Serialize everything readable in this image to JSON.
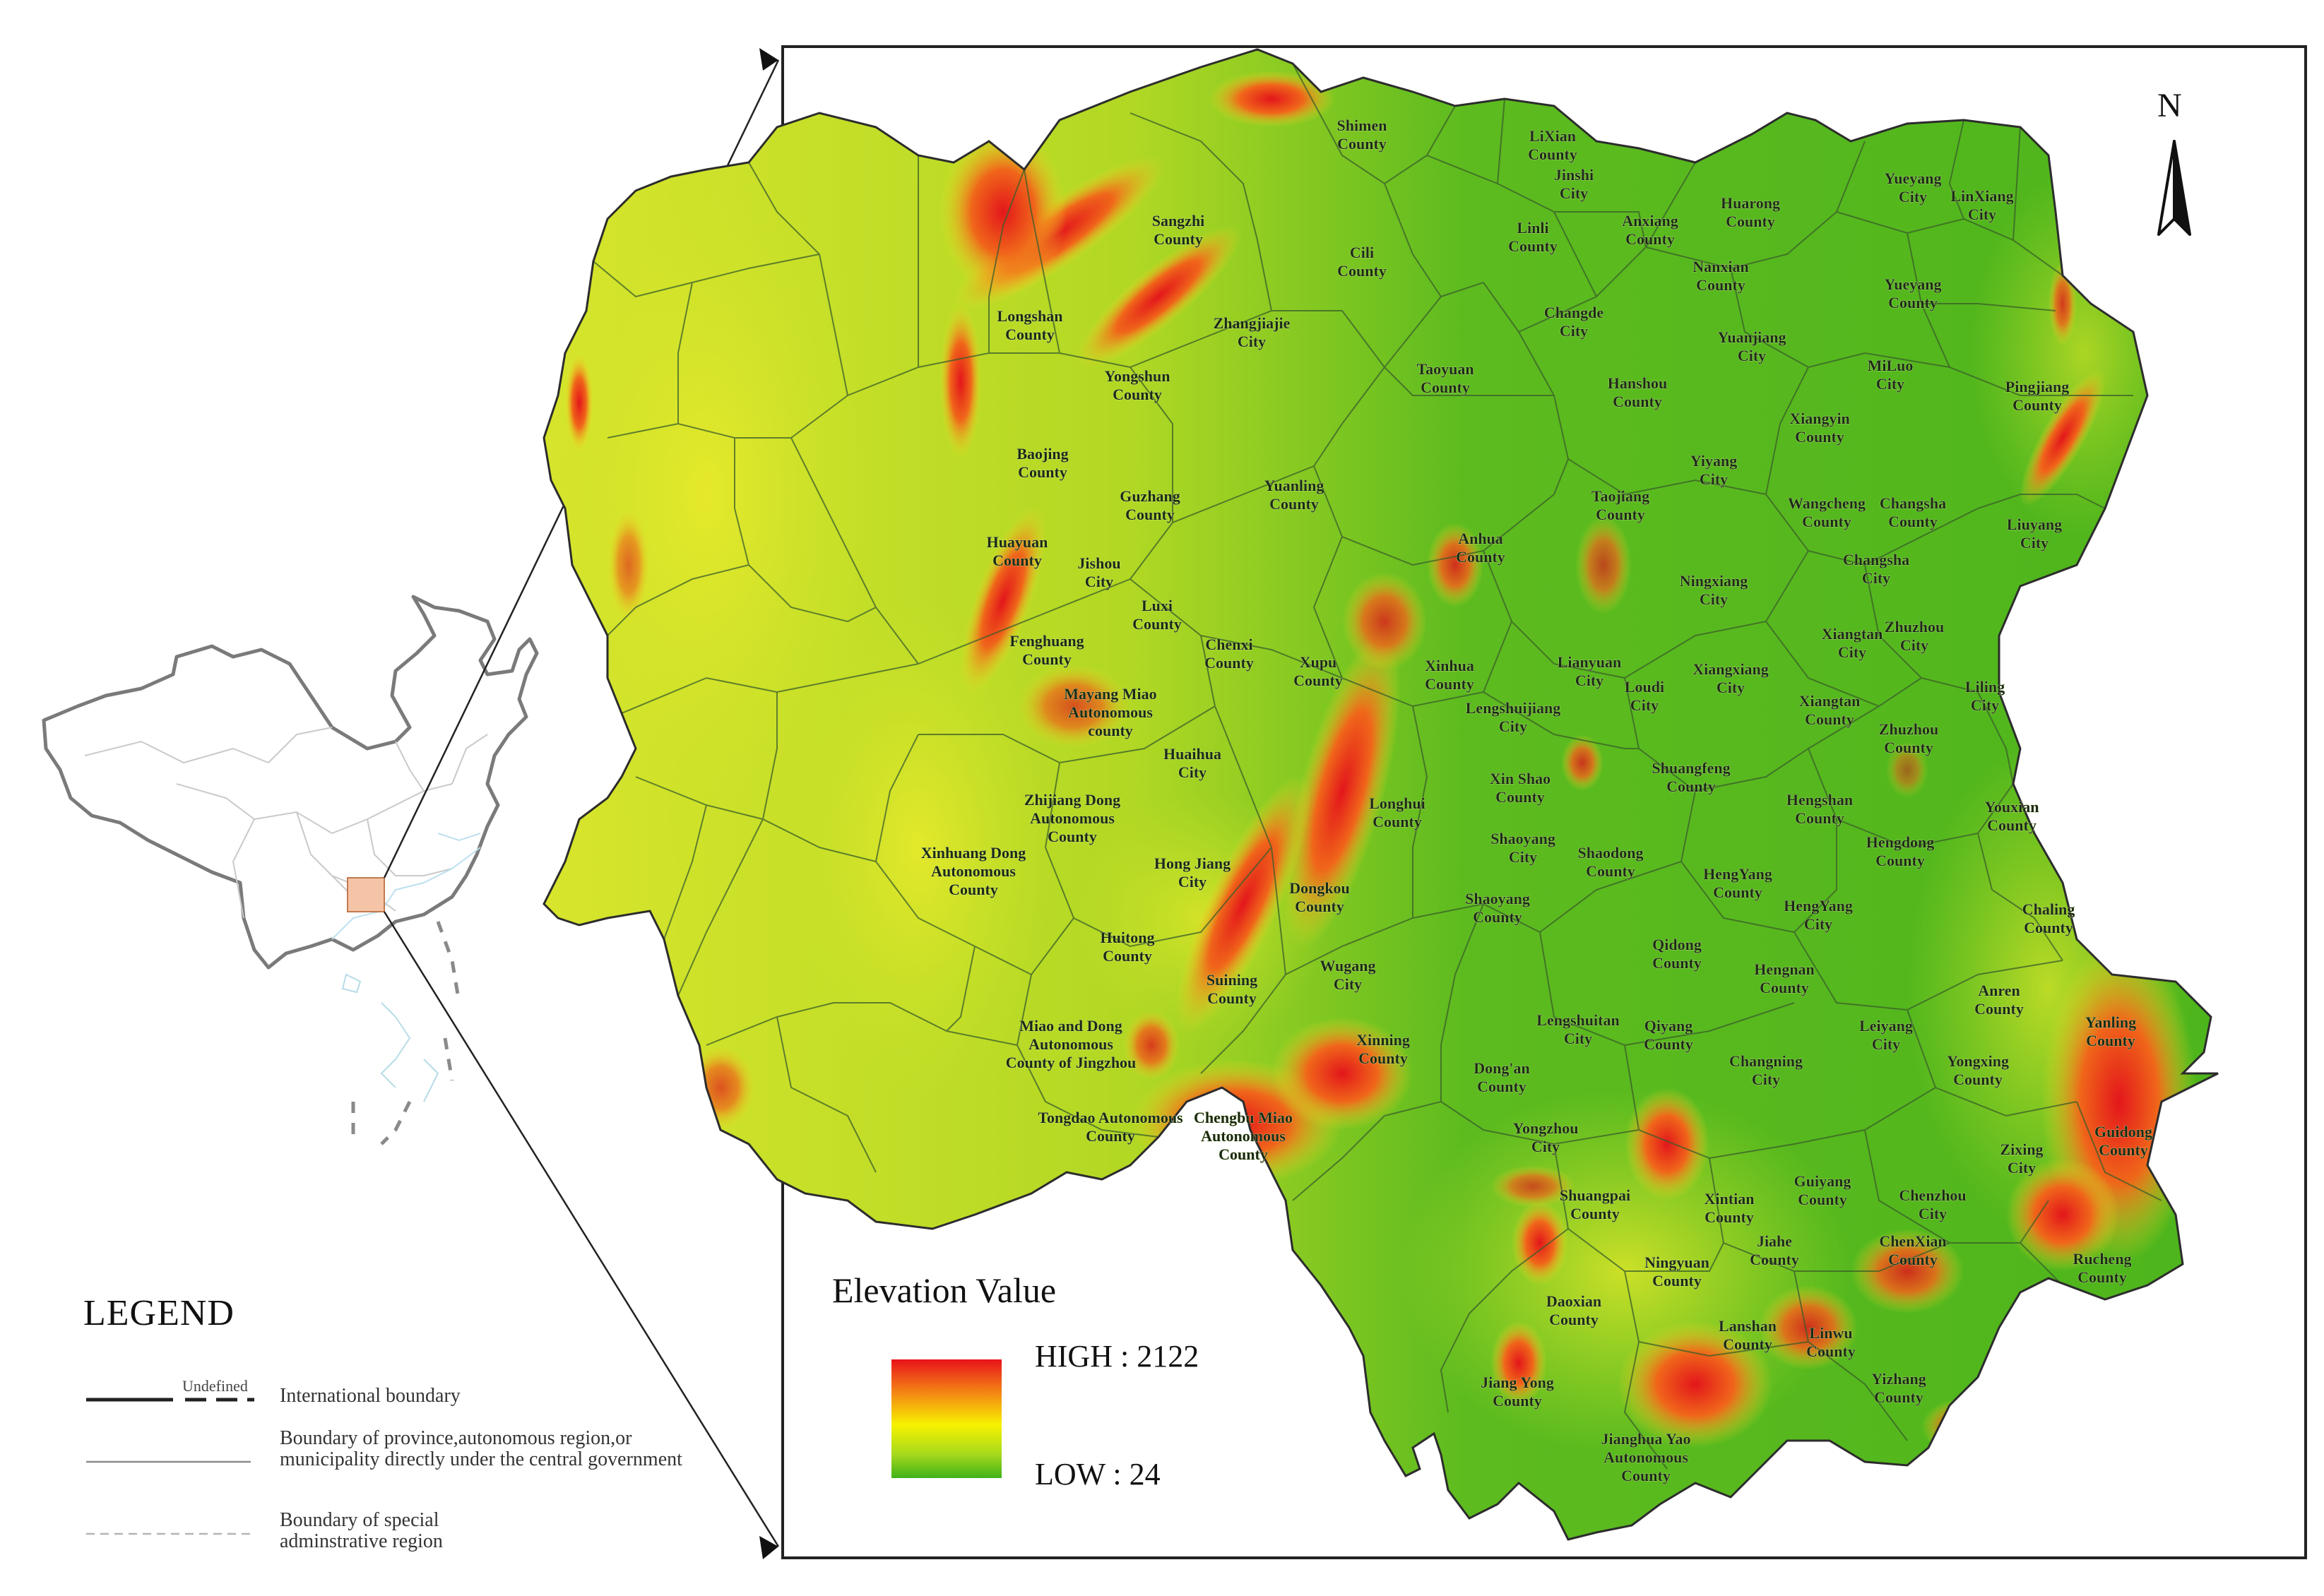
{
  "legend": {
    "title": "LEGEND",
    "undefined_label": "Undefined",
    "items": [
      {
        "label": "International boundary"
      },
      {
        "label": "Boundary of province,autonomous region,or municipality directly under the central government"
      },
      {
        "label": "Boundary of special adminstrative region"
      }
    ]
  },
  "elevation_legend": {
    "title": "Elevation Value",
    "high": "HIGH : 2122",
    "low": "LOW : 24",
    "high_value": 2122,
    "low_value": 24,
    "colors": {
      "high": "#e8131a",
      "mid": "#f7f200",
      "low": "#3fb219"
    }
  },
  "north_label": "N",
  "north_icon": "north-arrow-icon",
  "counties": [
    "Shimen County",
    "LiXian County",
    "Jinshi City",
    "Linli County",
    "Anxiang County",
    "Huarong County",
    "Yueyang City",
    "LinXiang City",
    "Sangzhi County",
    "Cili County",
    "Nanxian County",
    "Yueyang County",
    "Longshan County",
    "Zhangjiajie City",
    "Changde City",
    "Yuanjiang City",
    "Yongshun County",
    "Taoyuan County",
    "Hanshou County",
    "MiLuo City",
    "Pingjiang County",
    "Xiangyin County",
    "Baojing County",
    "Yiyang City",
    "Guzhang County",
    "Yuanling County",
    "Taojiang County",
    "Wangcheng County",
    "Changsha County",
    "Liuyang City",
    "Huayuan County",
    "Anhua County",
    "Changsha City",
    "Jishou City",
    "Ningxiang City",
    "Luxi County",
    "Chenxi County",
    "Xiangtan City",
    "Zhuzhou City",
    "Fenghuang County",
    "Xupu County",
    "Xinhua County",
    "Lianyuan City",
    "Xiangxiang City",
    "Loudi City",
    "Mayang Miao Autonomous county",
    "Liling City",
    "Lengshuijiang City",
    "Xiangtan County",
    "Zhuzhou County",
    "Huaihua City",
    "Shuangfeng County",
    "Zhijiang Dong Autonomous County",
    "Xin Shao County",
    "Longhui County",
    "Hengshan County",
    "Youxian County",
    "Xinhuang Dong Autonomous County",
    "Shaoyang City",
    "Shaodong County",
    "Hengdong County",
    "Hong Jiang City",
    "Dongkou County",
    "HengYang County",
    "Shaoyang County",
    "HengYang City",
    "Chaling County",
    "Huitong County",
    "Qidong County",
    "Hengnan County",
    "Suining County",
    "Wugang City",
    "Anren County",
    "Miao and Dong Autonomous County of Jingzhou",
    "Lengshuitan City",
    "Qiyang County",
    "Leiyang City",
    "Xinning County",
    "Yanling County",
    "Dong'an County",
    "Changning City",
    "Yongxing County",
    "Tongdao Autonomous County",
    "Chengbu Miao Autonomous County",
    "Yongzhou City",
    "Guidong County",
    "Zixing City",
    "Guiyang County",
    "Shuangpai County",
    "Xintian County",
    "Chenzhou City",
    "Jiahe County",
    "ChenXian County",
    "Rucheng County",
    "Ningyuan County",
    "Daoxian County",
    "Lanshan County",
    "Linwu County",
    "Yizhang County",
    "Jiang Yong County",
    "Jianghua Yao Autonomous County"
  ]
}
